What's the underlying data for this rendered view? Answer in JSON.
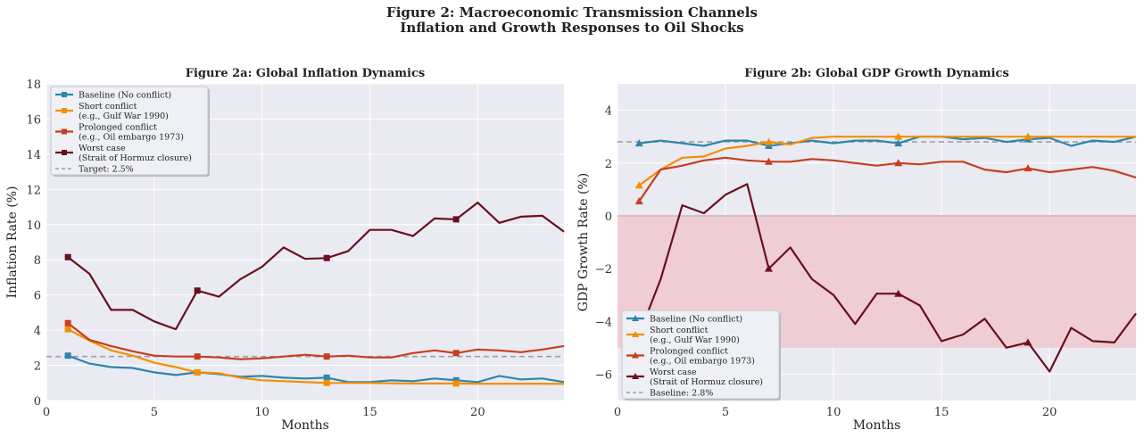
{
  "figure": {
    "title_line1": "Figure 2: Macroeconomic Transmission Channels",
    "title_line2": "Inflation and Growth Responses to Oil Shocks"
  },
  "colors": {
    "baseline": "#2e86ab",
    "short": "#f18f01",
    "prolonged": "#c73e1d",
    "worst": "#6a0f1f",
    "ref": "#a0a0a8",
    "bg": "#eaeaf2",
    "shade": "#f0c8d0"
  },
  "chart_data": [
    {
      "type": "line",
      "title": "Figure 2a: Global Inflation Dynamics",
      "xlabel": "Months",
      "ylabel": "Inflation Rate (%)",
      "xlim": [
        0,
        24
      ],
      "ylim": [
        0,
        18
      ],
      "xticks": [
        "0",
        "5",
        "10",
        "15",
        "20"
      ],
      "xtick_values": [
        0,
        5,
        10,
        15,
        20
      ],
      "yticks": [
        "0",
        "2",
        "4",
        "6",
        "8",
        "10",
        "12",
        "14",
        "16",
        "18"
      ],
      "ytick_values": [
        0,
        2,
        4,
        6,
        8,
        10,
        12,
        14,
        16,
        18
      ],
      "marker": "square",
      "legend_position": "upper-left",
      "x": [
        1,
        2,
        3,
        4,
        5,
        6,
        7,
        8,
        9,
        10,
        11,
        12,
        13,
        14,
        15,
        16,
        17,
        18,
        19,
        20,
        21,
        22,
        23,
        24
      ],
      "series": [
        {
          "name": "Baseline (No conflict)",
          "legend_lines": [
            "Baseline (No conflict)"
          ],
          "color_key": "baseline",
          "values": [
            2.55,
            2.1,
            1.9,
            1.85,
            1.6,
            1.45,
            1.6,
            1.5,
            1.35,
            1.4,
            1.3,
            1.25,
            1.3,
            1.05,
            1.05,
            1.15,
            1.1,
            1.25,
            1.15,
            1.05,
            1.4,
            1.2,
            1.25,
            1.05
          ]
        },
        {
          "name": "Short conflict (e.g., Gulf War 1990)",
          "legend_lines": [
            "Short conflict",
            "(e.g., Gulf War 1990)"
          ],
          "color_key": "short",
          "values": [
            4.05,
            3.4,
            2.85,
            2.55,
            2.15,
            1.9,
            1.6,
            1.55,
            1.3,
            1.15,
            1.1,
            1.05,
            1.0,
            1.0,
            1.0,
            0.98,
            0.97,
            0.97,
            0.97,
            0.96,
            0.96,
            0.96,
            0.96,
            0.95
          ]
        },
        {
          "name": "Prolonged conflict (e.g., Oil embargo 1973)",
          "legend_lines": [
            "Prolonged conflict",
            "(e.g., Oil embargo 1973)"
          ],
          "color_key": "prolonged",
          "values": [
            4.4,
            3.45,
            3.1,
            2.8,
            2.55,
            2.5,
            2.5,
            2.45,
            2.35,
            2.4,
            2.5,
            2.6,
            2.5,
            2.55,
            2.45,
            2.45,
            2.7,
            2.85,
            2.7,
            2.9,
            2.85,
            2.75,
            2.9,
            3.1
          ]
        },
        {
          "name": "Worst case (Strait of Hormuz closure)",
          "legend_lines": [
            "Worst case",
            "(Strait of Hormuz closure)"
          ],
          "color_key": "worst",
          "values": [
            8.15,
            7.2,
            5.15,
            5.15,
            4.5,
            4.05,
            6.25,
            5.9,
            6.9,
            7.6,
            8.7,
            8.05,
            8.1,
            8.5,
            9.7,
            9.7,
            9.35,
            10.35,
            10.3,
            11.25,
            10.1,
            10.45,
            10.5,
            9.6
          ]
        }
      ],
      "reference_line": {
        "label": "Target: 2.5%",
        "value": 2.5,
        "start_x": 0
      },
      "marker_every": [
        1,
        7,
        13,
        19
      ]
    },
    {
      "type": "line",
      "title": "Figure 2b: Global GDP Growth Dynamics",
      "xlabel": "Months",
      "ylabel": "GDP Growth Rate (%)",
      "xlim": [
        0,
        24
      ],
      "ylim": [
        -7,
        5
      ],
      "xticks": [
        "0",
        "5",
        "10",
        "15",
        "20"
      ],
      "xtick_values": [
        0,
        5,
        10,
        15,
        20
      ],
      "yticks": [
        "−6",
        "−4",
        "−2",
        "0",
        "2",
        "4"
      ],
      "ytick_values": [
        -6,
        -4,
        -2,
        0,
        2,
        4
      ],
      "marker": "triangle",
      "legend_position": "lower-left",
      "shaded_region": {
        "from": -5,
        "to": 0
      },
      "zero_line": 0,
      "x": [
        1,
        2,
        3,
        4,
        5,
        6,
        7,
        8,
        9,
        10,
        11,
        12,
        13,
        14,
        15,
        16,
        17,
        18,
        19,
        20,
        21,
        22,
        23,
        24
      ],
      "series": [
        {
          "name": "Baseline (No conflict)",
          "legend_lines": [
            "Baseline (No conflict)"
          ],
          "color_key": "baseline",
          "values": [
            2.75,
            2.85,
            2.75,
            2.65,
            2.85,
            2.85,
            2.65,
            2.75,
            2.85,
            2.75,
            2.85,
            2.85,
            2.75,
            3.0,
            3.0,
            2.9,
            2.95,
            2.8,
            2.9,
            2.95,
            2.65,
            2.85,
            2.8,
            3.0
          ]
        },
        {
          "name": "Short conflict (e.g., Gulf War 1990)",
          "legend_lines": [
            "Short conflict",
            "(e.g., Gulf War 1990)"
          ],
          "color_key": "short",
          "values": [
            1.15,
            1.75,
            2.2,
            2.25,
            2.55,
            2.65,
            2.8,
            2.7,
            2.95,
            3.0,
            3.0,
            3.0,
            3.0,
            3.0,
            3.0,
            3.0,
            3.0,
            3.0,
            3.0,
            3.0,
            3.0,
            3.0,
            3.0,
            3.0
          ]
        },
        {
          "name": "Prolonged conflict (e.g., Oil embargo 1973)",
          "legend_lines": [
            "Prolonged conflict",
            "(e.g., Oil embargo 1973)"
          ],
          "color_key": "prolonged",
          "values": [
            0.55,
            1.75,
            1.9,
            2.1,
            2.2,
            2.1,
            2.05,
            2.05,
            2.15,
            2.1,
            2.0,
            1.9,
            2.0,
            1.95,
            2.05,
            2.05,
            1.75,
            1.65,
            1.8,
            1.65,
            1.75,
            1.85,
            1.7,
            1.45
          ]
        },
        {
          "name": "Worst case (Strait of Hormuz closure)",
          "legend_lines": [
            "Worst case",
            "(Strait of Hormuz closure)"
          ],
          "color_key": "worst",
          "values": [
            -4.5,
            -2.4,
            0.4,
            0.1,
            0.8,
            1.2,
            -2.0,
            -1.2,
            -2.4,
            -3.0,
            -4.1,
            -2.95,
            -2.95,
            -3.4,
            -4.75,
            -4.5,
            -3.9,
            -5.0,
            -4.8,
            -5.9,
            -4.25,
            -4.75,
            -4.8,
            -3.7
          ]
        }
      ],
      "reference_line": {
        "label": "Baseline: 2.8%",
        "value": 2.8,
        "start_x": 0
      },
      "marker_every": [
        1,
        7,
        13,
        19
      ]
    }
  ]
}
